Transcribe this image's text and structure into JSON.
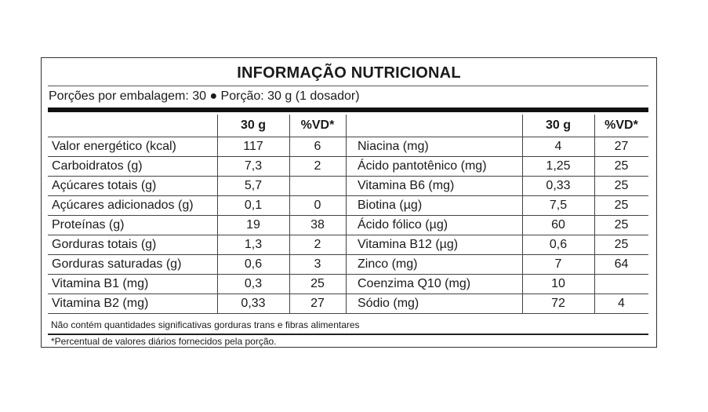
{
  "title": "INFORMAÇÃO NUTRICIONAL",
  "serving_info": "Porções por embalagem: 30 ● Porção: 30 g (1 dosador)",
  "headers": {
    "amount": "30 g",
    "dv": "%VD*"
  },
  "left_rows": [
    {
      "name": "Valor energético (kcal)",
      "amount": "117",
      "dv": "6"
    },
    {
      "name": "Carboidratos (g)",
      "amount": "7,3",
      "dv": "2"
    },
    {
      "name": "Açúcares totais (g)",
      "amount": "5,7",
      "dv": ""
    },
    {
      "name": "Açúcares adicionados (g)",
      "amount": "0,1",
      "dv": "0"
    },
    {
      "name": "Proteínas (g)",
      "amount": "19",
      "dv": "38"
    },
    {
      "name": "Gorduras totais (g)",
      "amount": "1,3",
      "dv": "2"
    },
    {
      "name": "Gorduras saturadas (g)",
      "amount": "0,6",
      "dv": "3"
    },
    {
      "name": "Vitamina B1 (mg)",
      "amount": "0,3",
      "dv": "25"
    },
    {
      "name": "Vitamina B2 (mg)",
      "amount": "0,33",
      "dv": "27"
    }
  ],
  "right_rows": [
    {
      "name": "Niacina (mg)",
      "amount": "4",
      "dv": "27"
    },
    {
      "name": "Ácido pantotênico (mg)",
      "amount": "1,25",
      "dv": "25"
    },
    {
      "name": "Vitamina B6 (mg)",
      "amount": "0,33",
      "dv": "25"
    },
    {
      "name": "Biotina (µg)",
      "amount": "7,5",
      "dv": "25"
    },
    {
      "name": "Ácido fólico (µg)",
      "amount": "60",
      "dv": "25"
    },
    {
      "name": "Vitamina B12 (µg)",
      "amount": "0,6",
      "dv": "25"
    },
    {
      "name": "Zinco (mg)",
      "amount": "7",
      "dv": "64"
    },
    {
      "name": "Coenzima Q10 (mg)",
      "amount": "10",
      "dv": ""
    },
    {
      "name": "Sódio (mg)",
      "amount": "72",
      "dv": "4"
    }
  ],
  "footnotes": {
    "note": "Não contém quantidades significativas gorduras trans e fibras alimentares",
    "dv_note": "*Percentual de valores diários fornecidos pela porção."
  }
}
